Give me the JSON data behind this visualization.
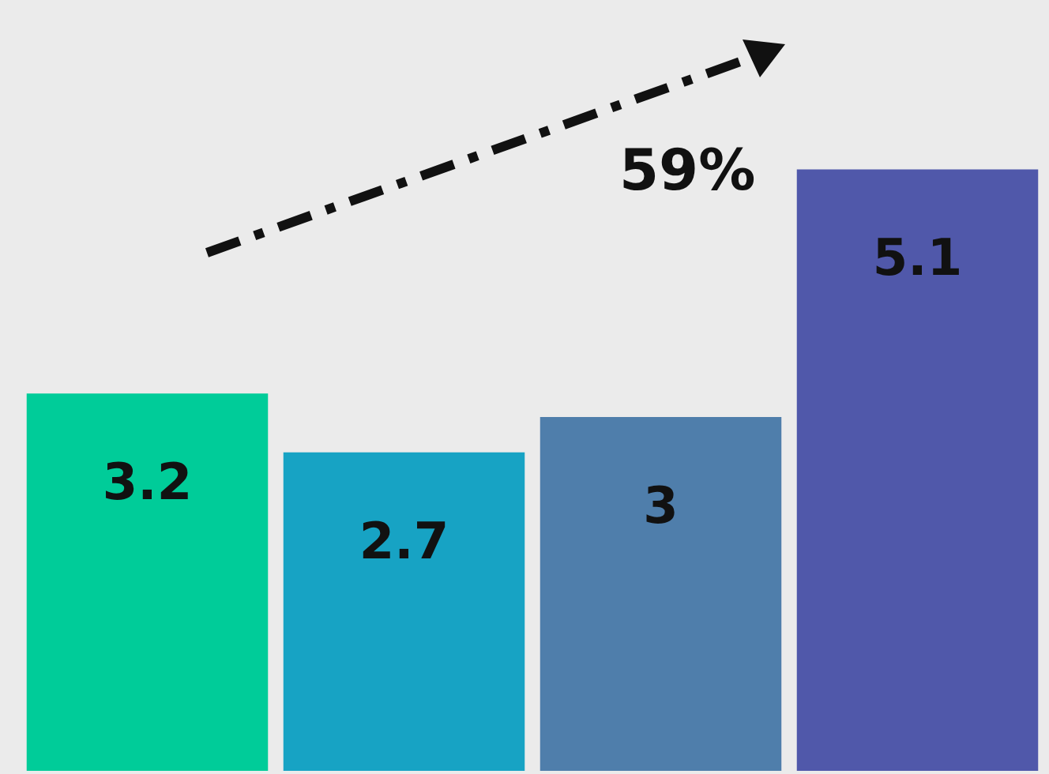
{
  "chart_data": {
    "type": "bar",
    "categories": [
      null,
      null,
      null,
      null
    ],
    "values": [
      3.2,
      2.7,
      3,
      5.1
    ],
    "colors": [
      "#00cc99",
      "#17a3c4",
      "#4f7eab",
      "#5058aa"
    ],
    "data_labels": true,
    "annotations": [
      "59%"
    ]
  }
}
